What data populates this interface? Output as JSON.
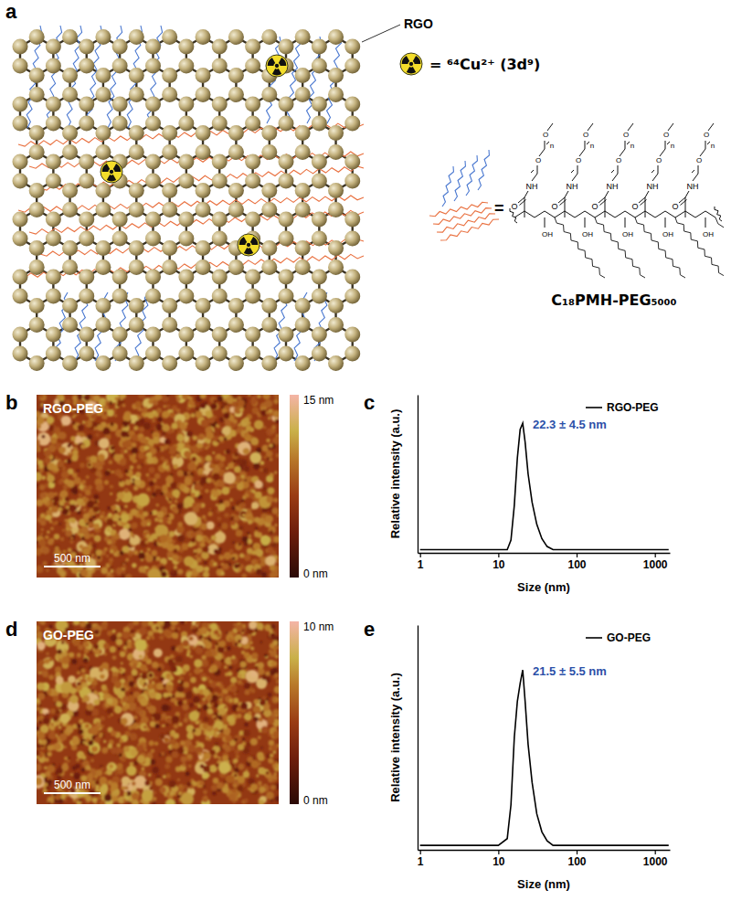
{
  "figure": {
    "panel_labels": [
      "a",
      "b",
      "c",
      "d",
      "e"
    ],
    "schematic": {
      "lattice_label": "RGO",
      "isotope_legend": "= ⁶⁴Cu²⁺ (3d⁹)",
      "polymer_equals": "=",
      "polymer_name": "C₁₈PMH-PEG₅₀₀₀",
      "atoms": {
        "amide": "NH",
        "oxygen": "O",
        "hydroxyl": "OH",
        "repeat": "n"
      }
    },
    "afm": [
      {
        "label": "RGO-PEG",
        "scale_bar": "500 nm",
        "colorbar": {
          "range": [
            0,
            15
          ],
          "ticks": [
            {
              "value": 0,
              "label": "0 nm"
            },
            {
              "value": 15,
              "label": "15 nm"
            }
          ]
        }
      },
      {
        "label": "GO-PEG",
        "scale_bar": "500 nm",
        "colorbar": {
          "range": [
            0,
            10
          ],
          "ticks": [
            {
              "value": 0,
              "label": "0 nm"
            },
            {
              "value": 10,
              "label": "10 nm"
            }
          ]
        }
      }
    ]
  },
  "chart_data": [
    {
      "type": "line",
      "log": "x",
      "x_label": "Size (nm)",
      "y_label": "Relative intensity (a.u.)",
      "x": [
        1,
        5,
        10,
        13,
        14.5,
        16,
        17.5,
        19,
        20.5,
        22,
        24,
        27,
        31,
        36,
        42,
        50,
        100,
        1000,
        1500
      ],
      "series": [
        {
          "name": "RGO-PEG",
          "color": "#000000",
          "values": [
            0.02,
            0.02,
            0.02,
            0.02,
            0.08,
            0.3,
            0.6,
            0.78,
            0.82,
            0.7,
            0.5,
            0.32,
            0.18,
            0.09,
            0.04,
            0.02,
            0.02,
            0.02,
            0.02
          ]
        }
      ],
      "annotations": [
        "22.3 ± 4.5 nm"
      ],
      "xlim": [
        0.93,
        1550
      ],
      "xticks": [
        1,
        10,
        100,
        1000
      ],
      "ylim": [
        0,
        1
      ],
      "tick_labels": "x",
      "legend": "upper right"
    },
    {
      "type": "line",
      "log": "x",
      "x_label": "Size (nm)",
      "y_label": "Relative intensity (a.u.)",
      "x": [
        1,
        5,
        10,
        13,
        14.5,
        16,
        17.5,
        19,
        20.5,
        22,
        24,
        27,
        31,
        36,
        42,
        50,
        100,
        1000,
        1500
      ],
      "series": [
        {
          "name": "GO-PEG",
          "color": "#000000",
          "values": [
            0.02,
            0.02,
            0.02,
            0.05,
            0.2,
            0.5,
            0.66,
            0.74,
            0.8,
            0.66,
            0.47,
            0.3,
            0.16,
            0.08,
            0.04,
            0.02,
            0.02,
            0.02,
            0.02
          ]
        }
      ],
      "annotations": [
        "21.5 ± 5.5 nm"
      ],
      "xlim": [
        0.93,
        1550
      ],
      "xticks": [
        1,
        10,
        100,
        1000
      ],
      "ylim": [
        0,
        1
      ],
      "tick_labels": "x",
      "legend": "upper right"
    }
  ]
}
